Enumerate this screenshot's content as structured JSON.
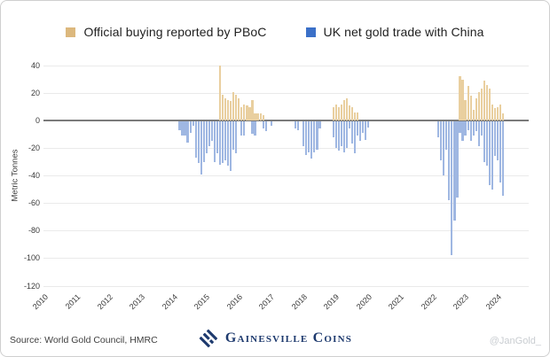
{
  "legend": [
    {
      "id": "pboc",
      "label": "Official buying reported by PBoC",
      "color": "#dcb87d"
    },
    {
      "id": "uk",
      "label": "UK net gold trade with China",
      "color": "#3b70c8"
    }
  ],
  "y_axis": {
    "title": "Metric Tonnes",
    "ticks": [
      40,
      20,
      0,
      -20,
      -40,
      -60,
      -80,
      -100,
      -120
    ]
  },
  "x_axis": {
    "years": [
      "2010",
      "2011",
      "2012",
      "2013",
      "2014",
      "2015",
      "2016",
      "2017",
      "2018",
      "2019",
      "2020",
      "2021",
      "2022",
      "2023",
      "2024"
    ]
  },
  "footer": {
    "source": "Source: World Gold Council, HMRC",
    "logo_text": "Gainesville Coins",
    "watermark": "@JanGold_"
  },
  "chart_data": {
    "type": "bar",
    "title": "",
    "ylabel": "Metric Tonnes",
    "unit": "metric tonnes per month",
    "ylim": [
      -120,
      40
    ],
    "x_domain": [
      "2010-01",
      "2024-12"
    ],
    "grid": true,
    "legend_position": "top",
    "series": [
      {
        "id": "pboc",
        "name": "Official buying reported by PBoC",
        "bar_color": "#e9cf9f",
        "points": [
          [
            "2015-06",
            40
          ],
          [
            "2015-07",
            19
          ],
          [
            "2015-08",
            16
          ],
          [
            "2015-09",
            15
          ],
          [
            "2015-10",
            14
          ],
          [
            "2015-11",
            21
          ],
          [
            "2015-12",
            19
          ],
          [
            "2016-01",
            16
          ],
          [
            "2016-02",
            10
          ],
          [
            "2016-03",
            12
          ],
          [
            "2016-04",
            11
          ],
          [
            "2016-05",
            10
          ],
          [
            "2016-06",
            15
          ],
          [
            "2016-07",
            5
          ],
          [
            "2016-08",
            5
          ],
          [
            "2016-09",
            5
          ],
          [
            "2016-10",
            4
          ],
          [
            "2018-12",
            10
          ],
          [
            "2019-01",
            12
          ],
          [
            "2019-02",
            10
          ],
          [
            "2019-03",
            12
          ],
          [
            "2019-04",
            15
          ],
          [
            "2019-05",
            16
          ],
          [
            "2019-06",
            11
          ],
          [
            "2019-07",
            10
          ],
          [
            "2019-08",
            6
          ],
          [
            "2019-09",
            6
          ],
          [
            "2022-11",
            32
          ],
          [
            "2022-12",
            30
          ],
          [
            "2023-01",
            15
          ],
          [
            "2023-02",
            25
          ],
          [
            "2023-03",
            18
          ],
          [
            "2023-04",
            8
          ],
          [
            "2023-05",
            16
          ],
          [
            "2023-06",
            21
          ],
          [
            "2023-07",
            23
          ],
          [
            "2023-08",
            29
          ],
          [
            "2023-09",
            26
          ],
          [
            "2023-10",
            23
          ],
          [
            "2023-11",
            12
          ],
          [
            "2023-12",
            9
          ],
          [
            "2024-01",
            10
          ],
          [
            "2024-02",
            12
          ],
          [
            "2024-03",
            5
          ]
        ]
      },
      {
        "id": "uk",
        "name": "UK net gold trade with China",
        "bar_color": "#9fb7e2",
        "points": [
          [
            "2014-03",
            -6
          ],
          [
            "2014-04",
            -10
          ],
          [
            "2014-05",
            -10
          ],
          [
            "2014-06",
            -15
          ],
          [
            "2014-07",
            -8
          ],
          [
            "2014-08",
            -3
          ],
          [
            "2014-09",
            -26
          ],
          [
            "2014-10",
            -30
          ],
          [
            "2014-11",
            -38
          ],
          [
            "2014-12",
            -29
          ],
          [
            "2015-01",
            -23
          ],
          [
            "2015-02",
            -18
          ],
          [
            "2015-03",
            -14
          ],
          [
            "2015-04",
            -29
          ],
          [
            "2015-05",
            -23
          ],
          [
            "2015-06",
            -31
          ],
          [
            "2015-07",
            -30
          ],
          [
            "2015-08",
            -28
          ],
          [
            "2015-09",
            -32
          ],
          [
            "2015-10",
            -36
          ],
          [
            "2015-11",
            -20
          ],
          [
            "2015-12",
            -23
          ],
          [
            "2016-02",
            -10
          ],
          [
            "2016-03",
            -10
          ],
          [
            "2016-06",
            -9
          ],
          [
            "2016-07",
            -10
          ],
          [
            "2016-10",
            -5
          ],
          [
            "2016-11",
            -7
          ],
          [
            "2017-01",
            -3
          ],
          [
            "2017-10",
            -5
          ],
          [
            "2017-11",
            -6
          ],
          [
            "2018-01",
            -18
          ],
          [
            "2018-02",
            -24
          ],
          [
            "2018-03",
            -22
          ],
          [
            "2018-04",
            -27
          ],
          [
            "2018-05",
            -22
          ],
          [
            "2018-06",
            -20
          ],
          [
            "2018-07",
            -5
          ],
          [
            "2018-12",
            -11
          ],
          [
            "2019-01",
            -19
          ],
          [
            "2019-02",
            -21
          ],
          [
            "2019-03",
            -18
          ],
          [
            "2019-04",
            -22
          ],
          [
            "2019-05",
            -19
          ],
          [
            "2019-06",
            -5
          ],
          [
            "2019-07",
            -16
          ],
          [
            "2019-08",
            -23
          ],
          [
            "2019-09",
            -10
          ],
          [
            "2019-10",
            -14
          ],
          [
            "2019-11",
            -8
          ],
          [
            "2019-12",
            -13
          ],
          [
            "2020-01",
            -4
          ],
          [
            "2022-03",
            -11
          ],
          [
            "2022-04",
            -28
          ],
          [
            "2022-05",
            -39
          ],
          [
            "2022-06",
            -20
          ],
          [
            "2022-07",
            -57
          ],
          [
            "2022-08",
            -97
          ],
          [
            "2022-09",
            -72
          ],
          [
            "2022-10",
            -55
          ],
          [
            "2022-11",
            -8
          ],
          [
            "2022-12",
            -14
          ],
          [
            "2023-01",
            -10
          ],
          [
            "2023-02",
            -6
          ],
          [
            "2023-03",
            -14
          ],
          [
            "2023-04",
            -10
          ],
          [
            "2023-05",
            -7
          ],
          [
            "2023-06",
            -18
          ],
          [
            "2023-07",
            -10
          ],
          [
            "2023-08",
            -29
          ],
          [
            "2023-09",
            -32
          ],
          [
            "2023-10",
            -46
          ],
          [
            "2023-11",
            -49
          ],
          [
            "2023-12",
            -25
          ],
          [
            "2024-01",
            -28
          ],
          [
            "2024-02",
            -44
          ],
          [
            "2024-03",
            -54
          ]
        ]
      }
    ]
  }
}
